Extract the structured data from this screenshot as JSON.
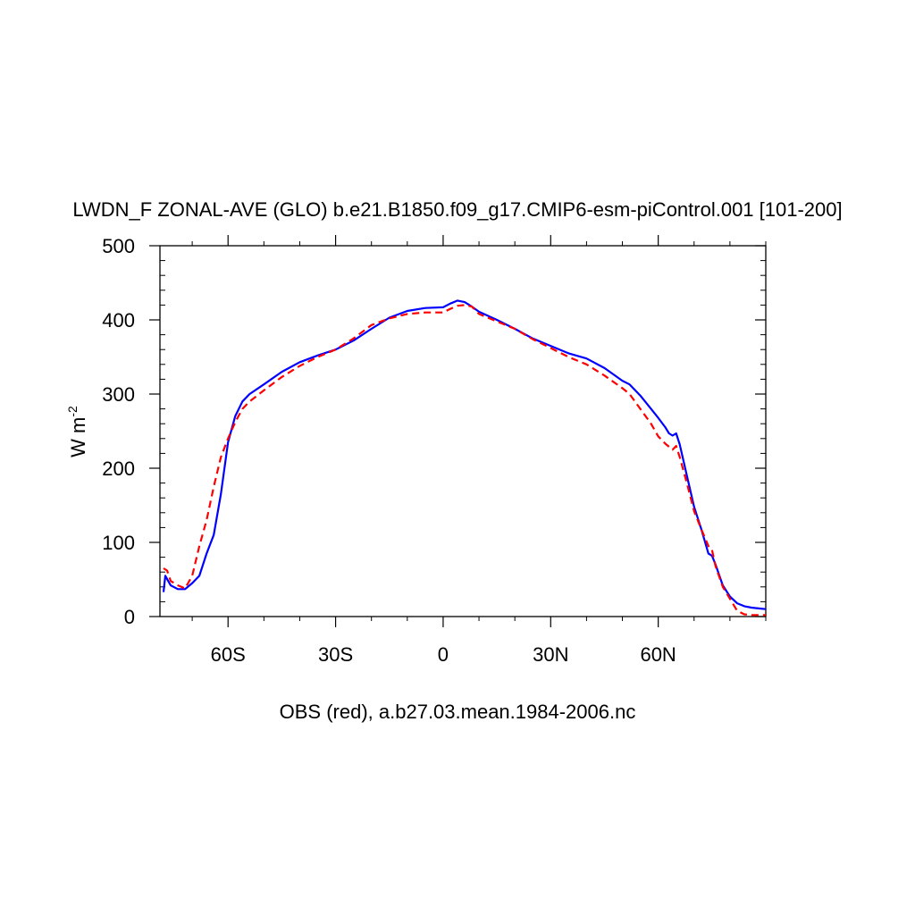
{
  "chart_data": {
    "type": "line",
    "title": "LWDN_F ZONAL-AVE (GLO) b.e21.B1850.f09_g17.CMIP6-esm-piControl.001 [101-200]",
    "xlabel": "OBS (red), a.b27.03.mean.1984-2006.nc",
    "ylabel": "W m",
    "ylabel_superscript": "-2",
    "xlim": [
      -79,
      90
    ],
    "ylim": [
      0,
      500
    ],
    "xticks": [
      {
        "value": -60,
        "label": "60S"
      },
      {
        "value": -30,
        "label": "30S"
      },
      {
        "value": 0,
        "label": "0"
      },
      {
        "value": 30,
        "label": "30N"
      },
      {
        "value": 60,
        "label": "60N"
      }
    ],
    "yticks": [
      0,
      100,
      200,
      300,
      400,
      500
    ],
    "grid": false,
    "series": [
      {
        "color": "#0000ff",
        "dash": "solid",
        "x": [
          -78,
          -77.5,
          -76,
          -74,
          -72,
          -70,
          -68,
          -66,
          -64,
          -62,
          -60,
          -58,
          -56,
          -54,
          -50,
          -45,
          -40,
          -35,
          -30,
          -25,
          -20,
          -15,
          -10,
          -5,
          0,
          2,
          4,
          6,
          8,
          10,
          15,
          20,
          25,
          30,
          35,
          40,
          45,
          50,
          52,
          55,
          58,
          60,
          62,
          63,
          64,
          65,
          66,
          68,
          70,
          72,
          74,
          75,
          76,
          78,
          80,
          82,
          84,
          86,
          88,
          90
        ],
        "y": [
          33,
          55,
          42,
          37,
          37,
          45,
          55,
          85,
          110,
          165,
          235,
          270,
          290,
          300,
          313,
          330,
          343,
          352,
          360,
          372,
          388,
          403,
          412,
          416,
          417,
          422,
          426,
          424,
          418,
          411,
          400,
          388,
          375,
          365,
          355,
          348,
          335,
          318,
          313,
          298,
          280,
          268,
          255,
          247,
          244,
          247,
          232,
          190,
          148,
          118,
          85,
          82,
          70,
          42,
          27,
          18,
          14,
          12,
          11,
          10
        ]
      },
      {
        "color": "#ff0000",
        "dash": "dashed",
        "x": [
          -78,
          -77,
          -76,
          -74,
          -72,
          -70,
          -68,
          -66,
          -64,
          -62,
          -60,
          -58,
          -56,
          -54,
          -50,
          -45,
          -40,
          -35,
          -30,
          -25,
          -20,
          -15,
          -10,
          -5,
          0,
          2,
          4,
          6,
          8,
          10,
          15,
          20,
          25,
          30,
          35,
          40,
          45,
          50,
          52,
          55,
          58,
          60,
          62,
          64,
          65,
          66,
          68,
          70,
          72,
          74,
          75,
          76,
          78,
          80,
          82,
          84,
          86,
          88,
          90
        ],
        "y": [
          65,
          62,
          48,
          42,
          38,
          55,
          95,
          130,
          175,
          215,
          240,
          262,
          280,
          290,
          305,
          323,
          338,
          350,
          360,
          375,
          393,
          402,
          408,
          410,
          410,
          415,
          419,
          420,
          418,
          408,
          398,
          388,
          374,
          362,
          350,
          340,
          325,
          308,
          300,
          280,
          260,
          243,
          233,
          225,
          230,
          215,
          180,
          142,
          118,
          95,
          90,
          68,
          40,
          24,
          8,
          3,
          2,
          2,
          2
        ]
      }
    ]
  }
}
